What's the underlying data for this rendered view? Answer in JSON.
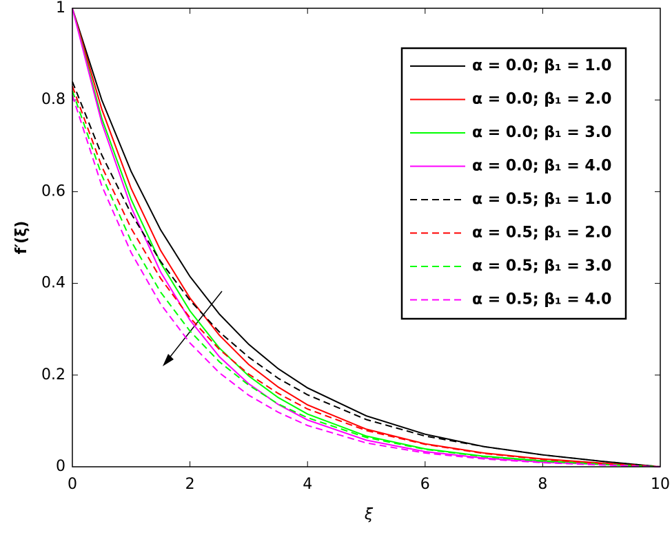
{
  "chart_data": {
    "type": "line",
    "xlabel": "ξ",
    "ylabel": "f′(ξ)",
    "x": [
      0,
      0.5,
      1,
      1.5,
      2,
      2.5,
      3,
      3.5,
      4,
      5,
      6,
      7,
      8,
      9,
      10
    ],
    "xlim": [
      0,
      10
    ],
    "xticks": [
      0,
      2,
      4,
      6,
      8,
      10
    ],
    "ylim": [
      0,
      1
    ],
    "yticks": [
      0,
      0.2,
      0.4,
      0.6,
      0.8,
      1
    ],
    "legend": "upper right",
    "series": [
      {
        "name": "α = 0.0; β₁ = 1.0",
        "color": "#000000",
        "dash": "solid",
        "values": [
          1,
          0.8,
          0.644,
          0.517,
          0.415,
          0.333,
          0.267,
          0.214,
          0.172,
          0.111,
          0.071,
          0.044,
          0.026,
          0.012,
          0
        ]
      },
      {
        "name": "α = 0.0; β₁ = 2.0",
        "color": "#ff0000",
        "dash": "solid",
        "values": [
          1,
          0.78,
          0.607,
          0.472,
          0.368,
          0.287,
          0.223,
          0.174,
          0.135,
          0.082,
          0.05,
          0.03,
          0.017,
          0.008,
          0
        ]
      },
      {
        "name": "α = 0.0; β₁ = 3.0",
        "color": "#00ff00",
        "dash": "solid",
        "values": [
          1,
          0.76,
          0.583,
          0.445,
          0.34,
          0.259,
          0.198,
          0.151,
          0.115,
          0.067,
          0.039,
          0.023,
          0.013,
          0.006,
          0
        ]
      },
      {
        "name": "α = 0.0; β₁ = 4.0",
        "color": "#ff00ff",
        "dash": "solid",
        "values": [
          1,
          0.75,
          0.566,
          0.425,
          0.32,
          0.24,
          0.181,
          0.136,
          0.102,
          0.058,
          0.033,
          0.019,
          0.01,
          0.005,
          0
        ]
      },
      {
        "name": "α = 0.5; β₁ = 1.0",
        "color": "#000000",
        "dash": "dashed",
        "values": [
          0.84,
          0.68,
          0.552,
          0.448,
          0.363,
          0.294,
          0.239,
          0.193,
          0.157,
          0.103,
          0.067,
          0.044,
          0.026,
          0.012,
          0
        ]
      },
      {
        "name": "α = 0.5; β₁ = 2.0",
        "color": "#ff0000",
        "dash": "dashed",
        "values": [
          0.83,
          0.655,
          0.52,
          0.411,
          0.325,
          0.256,
          0.202,
          0.16,
          0.126,
          0.079,
          0.049,
          0.029,
          0.016,
          0.007,
          0
        ]
      },
      {
        "name": "α = 0.5; β₁ = 3.0",
        "color": "#00ff00",
        "dash": "dashed",
        "values": [
          0.82,
          0.636,
          0.492,
          0.381,
          0.296,
          0.229,
          0.178,
          0.137,
          0.107,
          0.064,
          0.038,
          0.022,
          0.012,
          0.005,
          0
        ]
      },
      {
        "name": "α = 0.5; β₁ = 4.0",
        "color": "#ff00ff",
        "dash": "dashed",
        "values": [
          0.81,
          0.613,
          0.467,
          0.355,
          0.27,
          0.205,
          0.156,
          0.119,
          0.09,
          0.052,
          0.03,
          0.017,
          0.009,
          0.004,
          0
        ]
      }
    ]
  }
}
